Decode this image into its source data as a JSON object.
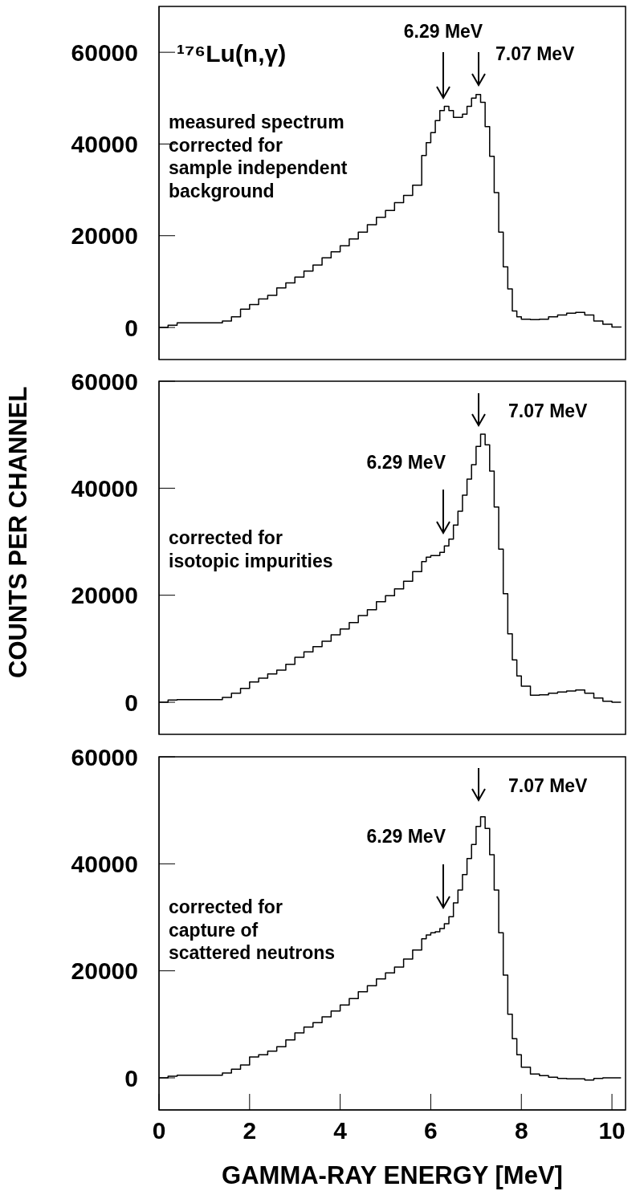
{
  "chart_data": [
    {
      "type": "step",
      "xlim": [
        0,
        10.3
      ],
      "ylim": [
        -7000,
        70000
      ],
      "yticks": [
        0,
        20000,
        40000,
        60000
      ],
      "tick_labels": "y",
      "x": [
        0,
        0.2,
        0.4,
        0.6,
        0.8,
        1,
        1.2,
        1.4,
        1.6,
        1.8,
        2,
        2.2,
        2.4,
        2.6,
        2.8,
        3,
        3.2,
        3.4,
        3.6,
        3.8,
        4,
        4.2,
        4.4,
        4.6,
        4.8,
        5,
        5.2,
        5.4,
        5.6,
        5.8,
        5.9,
        6,
        6.1,
        6.2,
        6.3,
        6.4,
        6.5,
        6.6,
        6.7,
        6.8,
        6.9,
        7,
        7.1,
        7.2,
        7.3,
        7.4,
        7.5,
        7.6,
        7.7,
        7.8,
        7.9,
        8,
        8.2,
        8.4,
        8.6,
        8.8,
        9,
        9.2,
        9.4,
        9.6,
        9.8,
        10,
        10.2
      ],
      "series": [
        {
          "color": "#000000",
          "values": [
            0,
            500,
            1000,
            1000,
            1000,
            1000,
            1000,
            1400,
            2300,
            4000,
            5000,
            6200,
            7000,
            8600,
            9700,
            11000,
            12300,
            13600,
            15200,
            16500,
            17800,
            19300,
            20800,
            22400,
            24000,
            25500,
            27200,
            28800,
            31000,
            37500,
            40300,
            42500,
            45100,
            47300,
            48200,
            47300,
            45800,
            45800,
            46500,
            48200,
            50000,
            50800,
            49100,
            43800,
            37300,
            29400,
            20800,
            13200,
            8400,
            3600,
            2300,
            1800,
            1700,
            1800,
            2300,
            2700,
            3100,
            3300,
            2700,
            1400,
            700,
            100,
            0
          ]
        }
      ],
      "annotations": [
        "¹⁷⁶Lu(n,γ)",
        "measured spectrum\ncorrected for\nsample independent\nbackground",
        "6.29 MeV",
        "7.07 MeV"
      ]
    },
    {
      "type": "step",
      "xlim": [
        0,
        10.3
      ],
      "ylim": [
        -6000,
        60000
      ],
      "yticks": [
        0,
        20000,
        40000,
        60000
      ],
      "tick_labels": "y",
      "ylabel": "COUNTS PER CHANNEL",
      "x": [
        0,
        0.2,
        0.4,
        0.6,
        0.8,
        1,
        1.2,
        1.4,
        1.6,
        1.8,
        2,
        2.2,
        2.4,
        2.6,
        2.8,
        3,
        3.2,
        3.4,
        3.6,
        3.8,
        4,
        4.2,
        4.4,
        4.6,
        4.8,
        5,
        5.2,
        5.4,
        5.6,
        5.8,
        5.9,
        6,
        6.1,
        6.2,
        6.3,
        6.4,
        6.5,
        6.6,
        6.7,
        6.8,
        6.9,
        7,
        7.1,
        7.2,
        7.3,
        7.4,
        7.5,
        7.6,
        7.7,
        7.8,
        7.9,
        8,
        8.2,
        8.4,
        8.6,
        8.8,
        9,
        9.2,
        9.4,
        9.6,
        9.8,
        10,
        10.2
      ],
      "series": [
        {
          "color": "#000000",
          "values": [
            0,
            400,
            500,
            500,
            500,
            500,
            500,
            900,
            1700,
            2600,
            3800,
            4500,
            5300,
            6000,
            7100,
            8400,
            9400,
            10400,
            11400,
            12600,
            13700,
            14900,
            16200,
            17300,
            18800,
            19900,
            21200,
            22600,
            24400,
            26300,
            27100,
            27400,
            27400,
            28000,
            29200,
            30500,
            33100,
            35700,
            38700,
            41700,
            44400,
            47800,
            50100,
            48100,
            43200,
            36500,
            28600,
            20300,
            12800,
            7900,
            4900,
            3000,
            1300,
            1400,
            1700,
            1900,
            2100,
            2300,
            1700,
            800,
            200,
            0,
            0
          ]
        }
      ],
      "annotations": [
        "corrected for\nisotopic impurities",
        "6.29 MeV",
        "7.07 MeV"
      ]
    },
    {
      "type": "step",
      "xlim": [
        0,
        10.3
      ],
      "ylim": [
        -6000,
        60000
      ],
      "yticks": [
        0,
        20000,
        40000,
        60000
      ],
      "xticks": [
        0,
        2,
        4,
        6,
        8,
        10
      ],
      "xlabel": "GAMMA-RAY ENERGY [MeV]",
      "x": [
        0,
        0.2,
        0.4,
        0.6,
        0.8,
        1,
        1.2,
        1.4,
        1.6,
        1.8,
        2,
        2.2,
        2.4,
        2.6,
        2.8,
        3,
        3.2,
        3.4,
        3.6,
        3.8,
        4,
        4.2,
        4.4,
        4.6,
        4.8,
        5,
        5.2,
        5.4,
        5.6,
        5.8,
        5.9,
        6,
        6.1,
        6.2,
        6.3,
        6.4,
        6.5,
        6.6,
        6.7,
        6.8,
        6.9,
        7,
        7.1,
        7.2,
        7.3,
        7.4,
        7.5,
        7.6,
        7.7,
        7.8,
        7.9,
        8,
        8.2,
        8.4,
        8.6,
        8.8,
        9,
        9.2,
        9.4,
        9.6,
        9.8,
        10,
        10.2
      ],
      "series": [
        {
          "color": "#000000",
          "values": [
            0,
            300,
            500,
            500,
            500,
            500,
            500,
            900,
            1600,
            2400,
            3900,
            4300,
            5000,
            5800,
            7100,
            8400,
            9500,
            10300,
            11400,
            12500,
            13600,
            14800,
            16100,
            17200,
            18500,
            19600,
            20700,
            22200,
            23900,
            26000,
            26700,
            27100,
            27300,
            27900,
            28800,
            30100,
            32700,
            35100,
            38000,
            41000,
            43600,
            47000,
            48800,
            46600,
            41700,
            35100,
            27100,
            19200,
            11900,
            7300,
            4300,
            2000,
            700,
            400,
            100,
            -100,
            -200,
            -200,
            -400,
            -100,
            0,
            0,
            0
          ]
        }
      ],
      "annotations": [
        "corrected for\ncapture of\nscattered neutrons",
        "6.29 MeV",
        "7.07 MeV"
      ]
    }
  ]
}
